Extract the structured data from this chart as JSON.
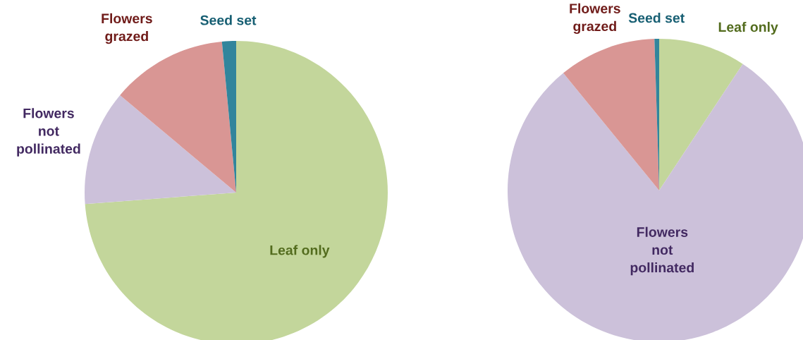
{
  "chart_data": [
    {
      "type": "pie",
      "categories": [
        "Leaf only",
        "Flowers\nnot\npollinated",
        "Flowers\ngrazed",
        "Seed set"
      ],
      "values": [
        73.8,
        12.3,
        12.4,
        1.5
      ],
      "colors": [
        "#c3d69b",
        "#ccc1da",
        "#d99694",
        "#31859c"
      ]
    },
    {
      "type": "pie",
      "categories": [
        "Leaf only",
        "Flowers\nnot\npollinated",
        "Flowers\ngrazed",
        "Seed set"
      ],
      "values": [
        9.3,
        79.8,
        10.4,
        0.5
      ],
      "colors": [
        "#c3d69b",
        "#ccc1da",
        "#d99694",
        "#31859c"
      ]
    }
  ]
}
